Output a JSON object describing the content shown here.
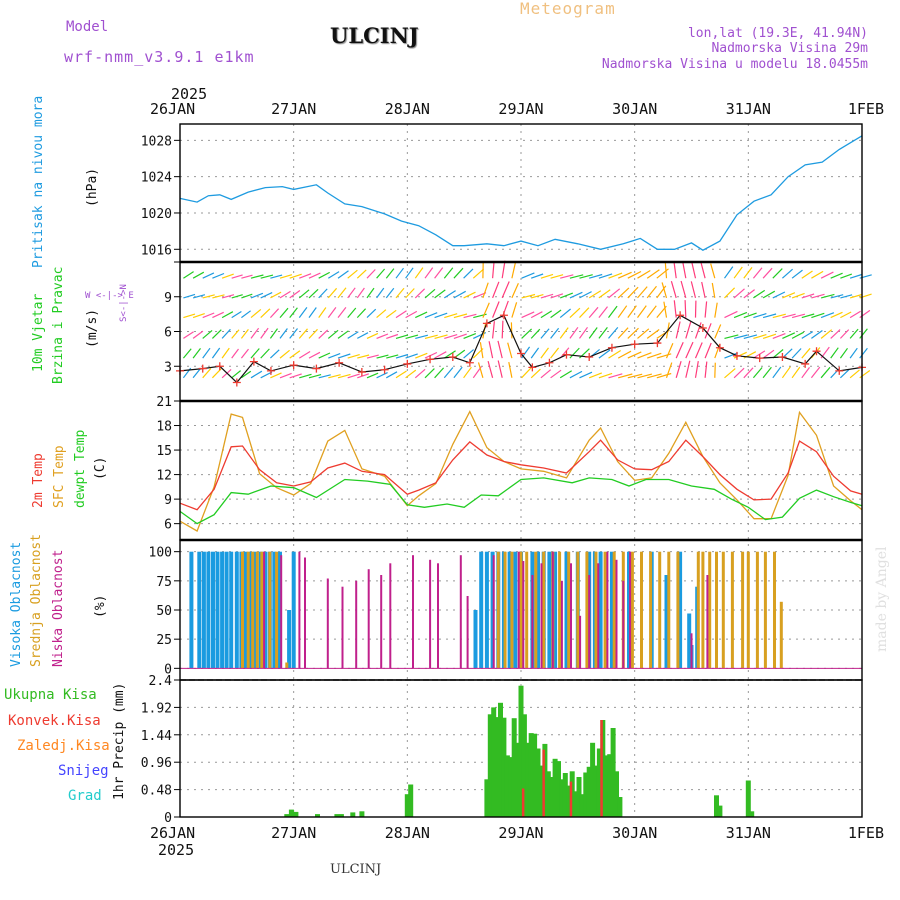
{
  "header": {
    "model_label": "Model",
    "model_name": "wrf-nmm_v3.9.1 e1km",
    "station": "ULCINJ",
    "meteogram": "Meteogram",
    "lonlat": "lon,lat (19.3E, 41.94N)",
    "altitude": "Nadmorska Visina 29m",
    "model_altitude": "Nadmorska Visina u modelu 18.0455m",
    "footer_station": "ULCINJ",
    "credit": "made by Angel"
  },
  "colors": {
    "pressure": "#1e9be0",
    "temp2m": "#ee3b30",
    "sfc_temp": "#e0a020",
    "dewpt": "#22cc22",
    "high_cloud": "#1a9be0",
    "mid_cloud": "#d8a020",
    "low_cloud": "#c0208c",
    "rain": "#33bb22",
    "conv": "#ee3b30",
    "zaledj": "#ff8822",
    "snow": "#4444ff",
    "grad": "#22cccc",
    "model": "#a050d0",
    "meteogram": "#f0c080"
  },
  "time_axis": {
    "year": "2025",
    "ticks": [
      "26JAN",
      "27JAN",
      "28JAN",
      "29JAN",
      "30JAN",
      "31JAN",
      "1FEB"
    ]
  },
  "panels": {
    "pressure": {
      "label": "Pritisak na nivou mora",
      "unit": "(hPa)",
      "ticks": [
        "1016",
        "1020",
        "1024",
        "1028"
      ]
    },
    "wind": {
      "label1": "10m Vjetar",
      "label2": "Brzina i Pravac",
      "unit": "(m/s)",
      "ticks": [
        "3",
        "6",
        "9"
      ],
      "compass": "W <-|-> E",
      "compass_v": "S<-|->N"
    },
    "temp": {
      "label1": "2m Temp",
      "label2": "SFC Temp",
      "label3": "dewpt Temp",
      "unit": "(C)",
      "ticks": [
        "6",
        "9",
        "12",
        "15",
        "18",
        "21"
      ]
    },
    "cloud": {
      "label1": "Visoka Oblacnost",
      "label2": "Srednja Oblacnost",
      "label3": "Niska Oblacnost",
      "unit": "(%)",
      "ticks": [
        "0",
        "25",
        "50",
        "75",
        "100"
      ]
    },
    "precip": {
      "unit": "1hr Precip (mm)",
      "ticks": [
        "0",
        "0.48",
        "0.96",
        "1.44",
        "1.92",
        "2.4"
      ],
      "legend": [
        "Ukupna Kisa",
        "Konvek.Kisa",
        "Zaledj.Kisa",
        "Snijeg",
        "Grad"
      ]
    }
  },
  "chart_data": [
    {
      "type": "line",
      "title": "",
      "ylabel": "Pritisak na nivou mora (hPa)",
      "ylim": [
        1014.6,
        1029.8
      ],
      "x_units": "days since 26JAN 00UTC",
      "series": [
        {
          "name": "Pritisak na nivou mora",
          "x": [
            0,
            0.15,
            0.25,
            0.35,
            0.45,
            0.6,
            0.75,
            0.9,
            1.0,
            1.2,
            1.3,
            1.45,
            1.6,
            1.8,
            1.95,
            2.1,
            2.25,
            2.4,
            2.5,
            2.7,
            2.85,
            3.0,
            3.15,
            3.3,
            3.5,
            3.7,
            3.9,
            4.05,
            4.2,
            4.35,
            4.5,
            4.6,
            4.75,
            4.9,
            5.05,
            5.2,
            5.35,
            5.5,
            5.65,
            5.8,
            6.0
          ],
          "y": [
            1021.6,
            1021.2,
            1021.9,
            1022.0,
            1021.5,
            1022.3,
            1022.8,
            1022.9,
            1022.6,
            1023.1,
            1022.2,
            1021.0,
            1020.7,
            1019.9,
            1019.1,
            1018.6,
            1017.6,
            1016.4,
            1016.4,
            1016.6,
            1016.4,
            1016.9,
            1016.4,
            1017.1,
            1016.6,
            1016.0,
            1016.6,
            1017.2,
            1016.0,
            1016.0,
            1016.7,
            1015.9,
            1016.9,
            1019.8,
            1021.3,
            1022.0,
            1024.0,
            1025.3,
            1025.6,
            1027.0,
            1028.5
          ]
        }
      ]
    },
    {
      "type": "line",
      "title": "",
      "ylabel": "10m Vjetar Brzina i Pravac (m/s)",
      "ylim": [
        0,
        12
      ],
      "x_units": "days since 26JAN 00UTC",
      "series": [
        {
          "name": "10m Vjetar",
          "x": [
            0,
            0.2,
            0.35,
            0.5,
            0.65,
            0.8,
            1.0,
            1.2,
            1.4,
            1.6,
            1.8,
            2.0,
            2.2,
            2.4,
            2.55,
            2.7,
            2.85,
            3.0,
            3.1,
            3.25,
            3.4,
            3.6,
            3.8,
            4.0,
            4.2,
            4.4,
            4.6,
            4.75,
            4.9,
            5.1,
            5.3,
            5.5,
            5.6,
            5.8,
            6.0
          ],
          "y": [
            2.6,
            2.8,
            3.0,
            1.6,
            3.4,
            2.6,
            3.1,
            2.8,
            3.3,
            2.5,
            2.7,
            3.2,
            3.6,
            3.8,
            3.3,
            6.7,
            7.4,
            4.1,
            2.9,
            3.3,
            4.0,
            3.8,
            4.6,
            4.9,
            5.0,
            7.4,
            6.3,
            4.6,
            3.9,
            3.7,
            3.8,
            3.2,
            4.3,
            2.6,
            2.9
          ]
        }
      ]
    },
    {
      "type": "line",
      "title": "",
      "ylabel": "Temp (C)",
      "ylim": [
        4,
        21
      ],
      "x_units": "days since 26JAN 00UTC",
      "series": [
        {
          "name": "2m Temp",
          "x": [
            0,
            0.15,
            0.3,
            0.45,
            0.55,
            0.7,
            0.85,
            1.0,
            1.15,
            1.3,
            1.45,
            1.6,
            1.8,
            2.0,
            2.1,
            2.25,
            2.4,
            2.55,
            2.7,
            2.85,
            3.0,
            3.2,
            3.4,
            3.6,
            3.7,
            3.85,
            4.0,
            4.15,
            4.3,
            4.45,
            4.6,
            4.75,
            4.9,
            5.05,
            5.2,
            5.35,
            5.45,
            5.6,
            5.75,
            5.9,
            6.0
          ],
          "y": [
            8.5,
            7.7,
            10.2,
            15.4,
            15.5,
            12.6,
            11.0,
            10.6,
            11.1,
            12.8,
            13.4,
            12.4,
            12.0,
            9.6,
            10.1,
            11.0,
            13.8,
            16.0,
            14.4,
            13.6,
            13.2,
            12.8,
            12.2,
            14.8,
            16.2,
            13.8,
            12.7,
            12.6,
            13.6,
            16.2,
            14.2,
            12.0,
            10.2,
            8.9,
            9.0,
            12.2,
            16.1,
            14.8,
            11.8,
            10.0,
            9.6
          ]
        },
        {
          "name": "SFC Temp",
          "x": [
            0,
            0.15,
            0.3,
            0.45,
            0.55,
            0.7,
            0.85,
            1.0,
            1.15,
            1.3,
            1.45,
            1.6,
            1.8,
            2.0,
            2.1,
            2.25,
            2.4,
            2.55,
            2.7,
            2.85,
            3.0,
            3.2,
            3.4,
            3.6,
            3.7,
            3.85,
            4.0,
            4.15,
            4.3,
            4.45,
            4.6,
            4.75,
            4.9,
            5.05,
            5.2,
            5.35,
            5.45,
            5.6,
            5.75,
            5.9,
            6.0
          ],
          "y": [
            6.3,
            5.1,
            10.5,
            19.4,
            19.0,
            12.1,
            10.4,
            9.5,
            10.9,
            16.1,
            17.4,
            12.7,
            11.8,
            8.2,
            9.4,
            10.9,
            15.7,
            19.7,
            15.3,
            13.6,
            12.7,
            12.4,
            11.6,
            16.2,
            17.7,
            13.6,
            11.3,
            11.6,
            14.6,
            18.4,
            14.2,
            11.0,
            8.9,
            6.6,
            6.6,
            11.9,
            19.6,
            16.8,
            10.6,
            8.8,
            7.7
          ]
        },
        {
          "name": "dewpt Temp",
          "x": [
            0,
            0.15,
            0.3,
            0.45,
            0.6,
            0.8,
            1.0,
            1.2,
            1.45,
            1.65,
            1.85,
            2.0,
            2.15,
            2.35,
            2.5,
            2.65,
            2.8,
            3.0,
            3.2,
            3.45,
            3.6,
            3.8,
            3.95,
            4.1,
            4.3,
            4.5,
            4.7,
            4.85,
            5.0,
            5.15,
            5.3,
            5.45,
            5.6,
            5.75,
            5.9,
            6.0
          ],
          "y": [
            7.5,
            6.0,
            7.1,
            9.8,
            9.6,
            10.6,
            10.4,
            9.2,
            11.4,
            11.2,
            10.8,
            8.3,
            8.0,
            8.4,
            8.0,
            9.5,
            9.4,
            11.4,
            11.6,
            11.0,
            11.6,
            11.4,
            10.6,
            11.4,
            11.4,
            10.6,
            10.2,
            9.0,
            8.0,
            6.5,
            6.8,
            9.1,
            10.1,
            9.3,
            8.6,
            8.2
          ]
        }
      ]
    },
    {
      "type": "bar",
      "title": "",
      "ylabel": "Oblacnost (%)",
      "ylim": [
        0,
        100
      ],
      "x_units": "days since 26JAN 00UTC",
      "series": [
        {
          "name": "Visoka Oblacnost",
          "x": [
            0.1,
            0.17,
            0.21,
            0.25,
            0.29,
            0.33,
            0.37,
            0.41,
            0.45,
            0.5,
            0.54,
            0.58,
            0.62,
            0.66,
            0.71,
            0.75,
            0.79,
            0.83,
            0.88,
            0.96,
            1.0,
            2.6,
            2.65,
            2.7,
            2.75,
            2.8,
            2.85,
            2.9,
            2.95,
            3.0,
            3.1,
            3.15,
            3.2,
            3.25,
            3.3,
            3.4,
            3.5,
            3.6,
            3.65,
            3.7,
            3.8,
            3.95,
            4.15,
            4.28,
            4.4,
            4.48,
            4.5,
            4.55
          ],
          "y": [
            100,
            100,
            100,
            100,
            100,
            100,
            100,
            100,
            100,
            100,
            100,
            100,
            100,
            100,
            100,
            100,
            100,
            100,
            100,
            50,
            100,
            50,
            100,
            100,
            100,
            100,
            100,
            100,
            100,
            100,
            100,
            100,
            100,
            100,
            100,
            100,
            100,
            100,
            100,
            100,
            100,
            100,
            100,
            80,
            100,
            47,
            20,
            70
          ]
        },
        {
          "name": "Srednja Oblacnost",
          "x": [
            0.55,
            0.6,
            0.64,
            0.68,
            0.72,
            0.79,
            0.85,
            0.94,
            2.8,
            2.86,
            2.92,
            3.0,
            3.05,
            3.13,
            3.2,
            3.28,
            3.34,
            3.42,
            3.5,
            3.58,
            3.66,
            3.74,
            3.82,
            3.9,
            3.98,
            4.06,
            4.14,
            4.22,
            4.3,
            4.38,
            4.56,
            4.6,
            4.66,
            4.72,
            4.78,
            4.86,
            4.95,
            5.0,
            5.08,
            5.15,
            5.23,
            5.29
          ],
          "y": [
            100,
            100,
            100,
            100,
            100,
            100,
            100,
            5,
            100,
            100,
            100,
            100,
            100,
            100,
            100,
            100,
            100,
            100,
            100,
            100,
            100,
            100,
            100,
            100,
            100,
            100,
            100,
            100,
            100,
            100,
            100,
            100,
            100,
            100,
            100,
            100,
            100,
            100,
            100,
            100,
            100,
            57
          ]
        },
        {
          "name": "Niska Oblacnost",
          "x": [
            0.74,
            0.89,
            1.05,
            1.1,
            1.3,
            1.43,
            1.55,
            1.66,
            1.77,
            1.85,
            2.05,
            2.2,
            2.27,
            2.47,
            2.53,
            2.76,
            2.98,
            3.02,
            3.1,
            3.18,
            3.28,
            3.36,
            3.44,
            3.52,
            3.6,
            3.68,
            3.76,
            3.84,
            3.9,
            3.96,
            4.5,
            4.64
          ],
          "y": [
            100,
            97,
            100,
            95,
            77,
            70,
            75,
            85,
            80,
            90,
            97,
            93,
            90,
            97,
            62,
            97,
            100,
            92,
            80,
            90,
            100,
            75,
            90,
            45,
            80,
            90,
            100,
            93,
            75,
            100,
            30,
            80
          ]
        }
      ]
    },
    {
      "type": "bar",
      "title": "",
      "ylabel": "1hr Precip (mm)",
      "ylim": [
        0,
        2.4
      ],
      "x_units": "days since 26JAN 00UTC",
      "series": [
        {
          "name": "Ukupna Kisa",
          "x": [
            0.94,
            0.98,
            1.02,
            1.21,
            1.38,
            1.42,
            1.52,
            1.6,
            2.0,
            2.03,
            2.7,
            2.73,
            2.76,
            2.79,
            2.82,
            2.85,
            2.88,
            2.91,
            2.94,
            2.97,
            3.0,
            3.03,
            3.06,
            3.09,
            3.12,
            3.15,
            3.18,
            3.21,
            3.24,
            3.27,
            3.3,
            3.33,
            3.36,
            3.39,
            3.42,
            3.45,
            3.48,
            3.51,
            3.54,
            3.57,
            3.6,
            3.63,
            3.66,
            3.69,
            3.72,
            3.75,
            3.78,
            3.81,
            3.84,
            3.87,
            4.72,
            4.75,
            5.0,
            5.03
          ],
          "y": [
            0.05,
            0.13,
            0.09,
            0.05,
            0.05,
            0.05,
            0.08,
            0.1,
            0.4,
            0.57,
            0.66,
            1.8,
            1.92,
            1.75,
            2.0,
            1.74,
            1.08,
            1.05,
            1.73,
            1.3,
            2.3,
            1.8,
            1.3,
            1.47,
            1.46,
            1.2,
            0.9,
            1.28,
            0.8,
            0.7,
            1.02,
            0.98,
            0.66,
            0.77,
            0.55,
            0.8,
            0.45,
            0.7,
            0.4,
            0.78,
            0.88,
            1.3,
            0.9,
            1.2,
            1.7,
            1.08,
            1.1,
            1.56,
            0.8,
            0.35,
            0.38,
            0.2,
            0.64,
            0.1
          ]
        },
        {
          "name": "Konvek.Kisa",
          "x": [
            3.03,
            3.21,
            3.45,
            3.72
          ],
          "y": [
            0.5,
            1.18,
            0.62,
            1.7
          ]
        },
        {
          "name": "Zaledj.Kisa",
          "x": [],
          "y": []
        },
        {
          "name": "Snijeg",
          "x": [],
          "y": []
        },
        {
          "name": "Grad",
          "x": [],
          "y": []
        }
      ]
    }
  ]
}
